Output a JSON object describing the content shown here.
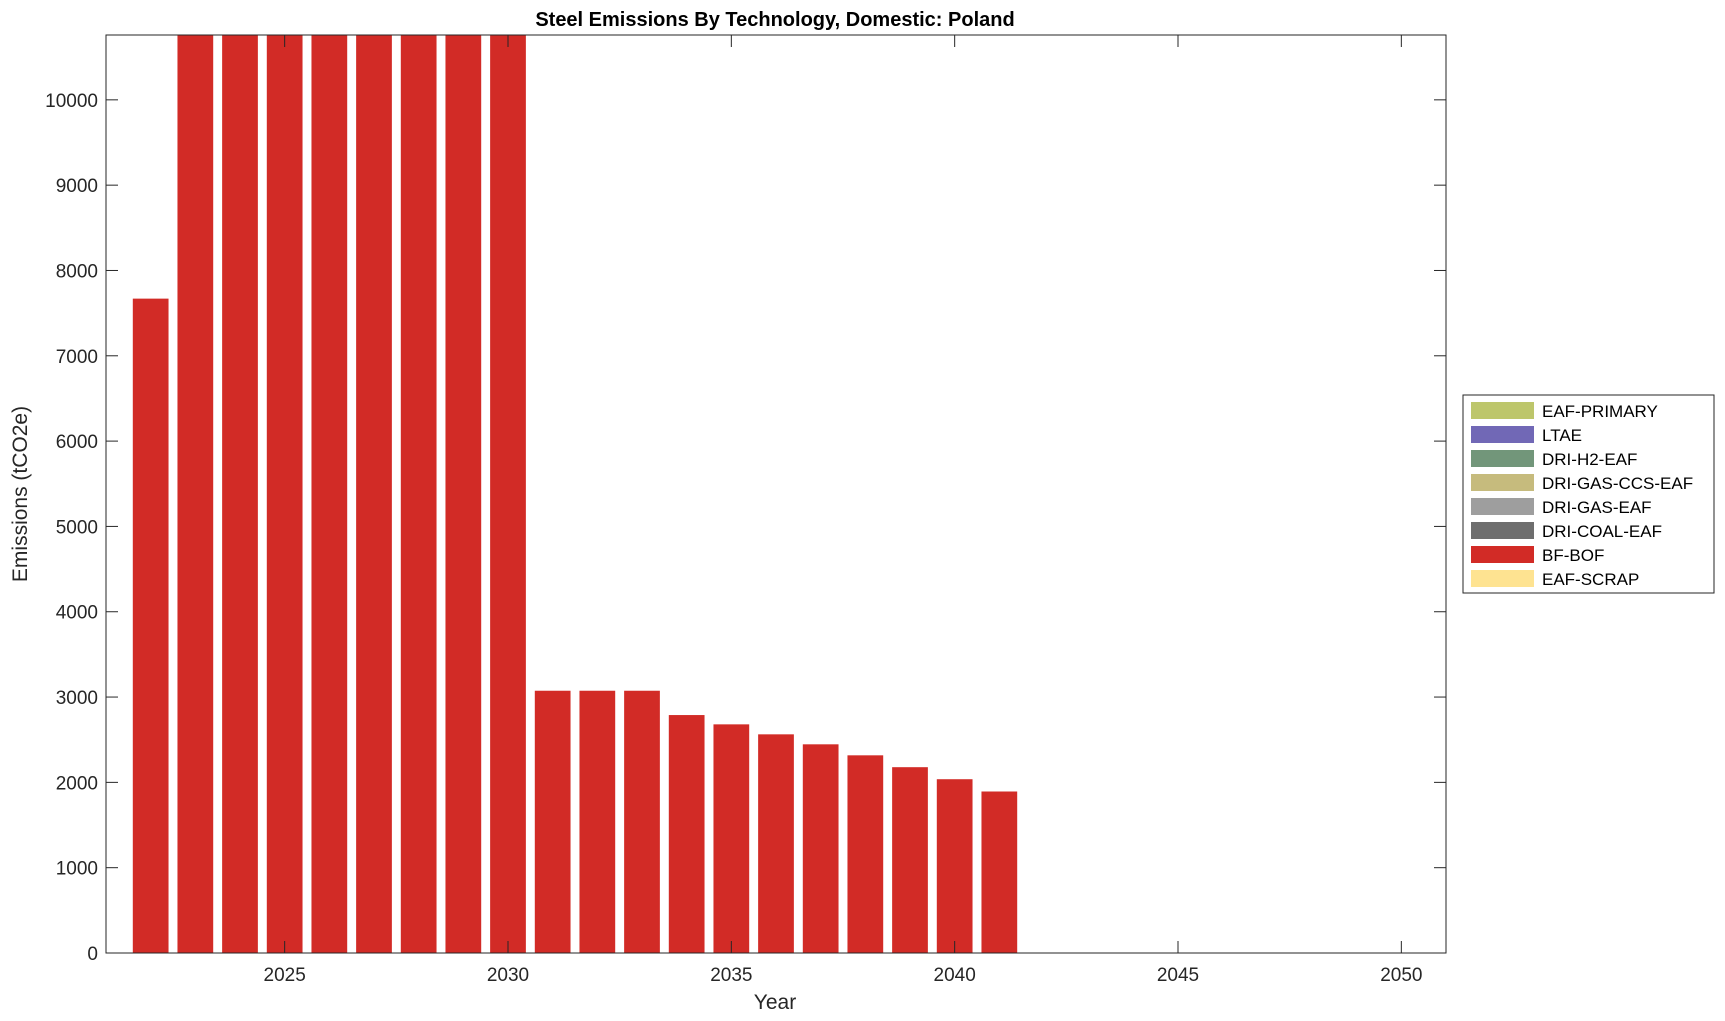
{
  "chart_data": {
    "type": "bar",
    "stacked": true,
    "title": "Steel Emissions By Technology, Domestic: Poland",
    "xlabel": "Year",
    "ylabel": "Emissions (tCO2e)",
    "xlim": [
      2021,
      2051
    ],
    "ylim": [
      0,
      10760
    ],
    "xticks": [
      2025,
      2030,
      2035,
      2040,
      2045,
      2050
    ],
    "yticks": [
      0,
      1000,
      2000,
      3000,
      4000,
      5000,
      6000,
      7000,
      8000,
      9000,
      10000
    ],
    "grid": false,
    "legend_position": "outside-right",
    "x": [
      2022,
      2023,
      2024,
      2025,
      2026,
      2027,
      2028,
      2029,
      2030,
      2031,
      2032,
      2033,
      2034,
      2035,
      2036,
      2037,
      2038,
      2039,
      2040,
      2041
    ],
    "series": [
      {
        "name": "EAF-PRIMARY",
        "color": "#bdc66b",
        "values": [
          0,
          0,
          0,
          0,
          0,
          0,
          0,
          0,
          0,
          0,
          0,
          0,
          0,
          0,
          0,
          0,
          0,
          0,
          0,
          0
        ]
      },
      {
        "name": "LTAE",
        "color": "#7168b6",
        "values": [
          0,
          0,
          0,
          0,
          0,
          0,
          0,
          0,
          0,
          0,
          0,
          0,
          0,
          0,
          0,
          0,
          0,
          0,
          0,
          0
        ]
      },
      {
        "name": "DRI-H2-EAF",
        "color": "#72967a",
        "values": [
          0,
          0,
          0,
          0,
          0,
          0,
          0,
          0,
          0,
          0,
          0,
          0,
          0,
          0,
          0,
          0,
          0,
          0,
          0,
          0
        ]
      },
      {
        "name": "DRI-GAS-CCS-EAF",
        "color": "#c6bb7d",
        "values": [
          0,
          0,
          0,
          0,
          0,
          0,
          0,
          0,
          0,
          0,
          0,
          0,
          0,
          0,
          0,
          0,
          0,
          0,
          0,
          0
        ]
      },
      {
        "name": "DRI-GAS-EAF",
        "color": "#9e9e9e",
        "values": [
          0,
          0,
          0,
          0,
          0,
          0,
          0,
          0,
          0,
          0,
          0,
          0,
          0,
          0,
          0,
          0,
          0,
          0,
          0,
          0
        ]
      },
      {
        "name": "DRI-COAL-EAF",
        "color": "#6e6e6e",
        "values": [
          0,
          0,
          0,
          0,
          0,
          0,
          0,
          0,
          0,
          0,
          0,
          0,
          0,
          0,
          0,
          0,
          0,
          0,
          0,
          0
        ]
      },
      {
        "name": "BF-BOF",
        "color": "#d22b26",
        "values": [
          7670,
          10760,
          10760,
          10760,
          10760,
          10760,
          10760,
          10760,
          10760,
          3074,
          3074,
          3074,
          2789,
          2680,
          2563,
          2446,
          2317,
          2178,
          2037,
          1893
        ]
      },
      {
        "name": "EAF-SCRAP",
        "color": "#fee391",
        "values": [
          0,
          0,
          0,
          0,
          0,
          0,
          0,
          0,
          0,
          0,
          0,
          0,
          0,
          0,
          0,
          0,
          0,
          0,
          0,
          0
        ]
      }
    ],
    "note_values_clipped_at_ylim": [
      2023,
      2024,
      2025,
      2026,
      2027,
      2028,
      2029,
      2030
    ]
  }
}
